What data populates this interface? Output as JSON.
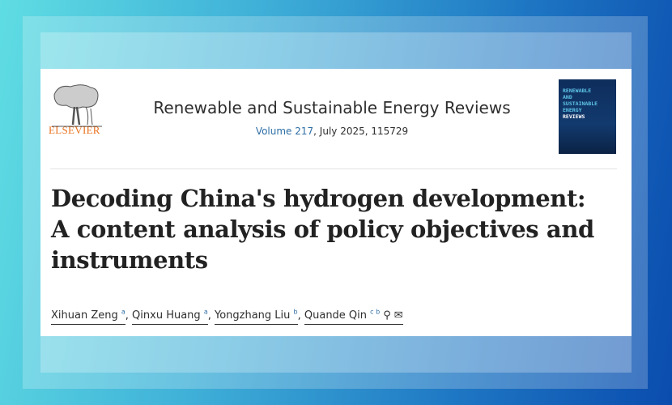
{
  "publisher": {
    "name": "ELSEVIER",
    "brand_color": "#e9711c"
  },
  "journal": {
    "name": "Renewable and Sustainable Energy Reviews",
    "volume_link": "Volume 217",
    "details": ", July 2025, 115729"
  },
  "cover": {
    "lines": [
      "RENEWABLE",
      "AND",
      "SUSTAINABLE",
      "ENERGY"
    ],
    "last": "REVIEWS"
  },
  "article": {
    "title": "Decoding China's hydrogen development: A content analysis of policy objectives and instruments"
  },
  "authors": [
    {
      "name": "Xihuan Zeng",
      "aff": "a",
      "sep": ", "
    },
    {
      "name": "Qinxu Huang",
      "aff": "a",
      "sep": ", "
    },
    {
      "name": "Yongzhang Liu",
      "aff": "b",
      "sep": ", "
    },
    {
      "name": "Quande Qin",
      "aff": "c b",
      "sep": ""
    }
  ],
  "icons": {
    "corresponding": "person-icon",
    "email": "envelope-icon"
  }
}
